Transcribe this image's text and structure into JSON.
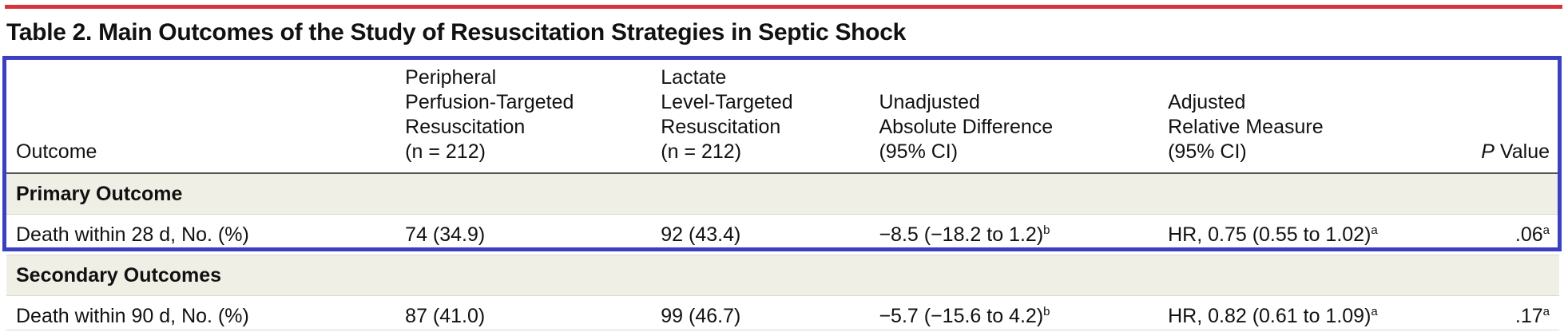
{
  "title": "Table 2. Main Outcomes of the Study of Resuscitation Strategies in Septic Shock",
  "colors": {
    "top_rule": "#d9323a",
    "highlight_box": "#3b3fc2",
    "section_band": "#efefe6"
  },
  "headers": {
    "outcome": "Outcome",
    "peripheral": [
      "Peripheral",
      "Perfusion-Targeted",
      "Resuscitation",
      "(n = 212)"
    ],
    "lactate": [
      "Lactate",
      "Level-Targeted",
      "Resuscitation",
      "(n = 212)"
    ],
    "unadjusted": [
      "Unadjusted",
      "Absolute Difference",
      "(95% CI)"
    ],
    "adjusted": [
      "Adjusted",
      "Relative Measure",
      "(95% CI)"
    ],
    "p_value_italic": "P",
    "p_value_rest": " Value"
  },
  "sections": [
    {
      "label": "Primary Outcome",
      "rows": [
        {
          "outcome": "Death within 28 d, No. (%)",
          "peripheral": "74 (34.9)",
          "lactate": "92 (43.4)",
          "unadjusted": "−8.5 (−18.2 to 1.2)",
          "unadjusted_note": "b",
          "adjusted": "HR, 0.75 (0.55 to 1.02)",
          "adjusted_note": "a",
          "p": ".06",
          "p_note": "a"
        }
      ]
    },
    {
      "label": "Secondary Outcomes",
      "rows": [
        {
          "outcome": "Death within 90 d, No. (%)",
          "peripheral": "87 (41.0)",
          "lactate": "99 (46.7)",
          "unadjusted": "−5.7 (−15.6 to 4.2)",
          "unadjusted_note": "b",
          "adjusted": "HR, 0.82 (0.61 to 1.09)",
          "adjusted_note": "a",
          "p": ".17",
          "p_note": "a"
        }
      ]
    }
  ]
}
